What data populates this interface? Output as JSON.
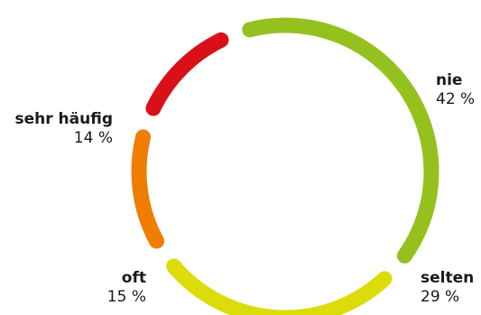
{
  "chart_data": {
    "type": "pie",
    "style": "donut-ring",
    "categories": [
      "nie",
      "selten",
      "oft",
      "sehr häufig"
    ],
    "values": [
      42,
      29,
      15,
      14
    ],
    "value_labels": [
      "42 %",
      "29 %",
      "15 %",
      "14 %"
    ],
    "colors": [
      "#95c11f",
      "#dcdc0a",
      "#ef7d00",
      "#d9101a"
    ]
  }
}
